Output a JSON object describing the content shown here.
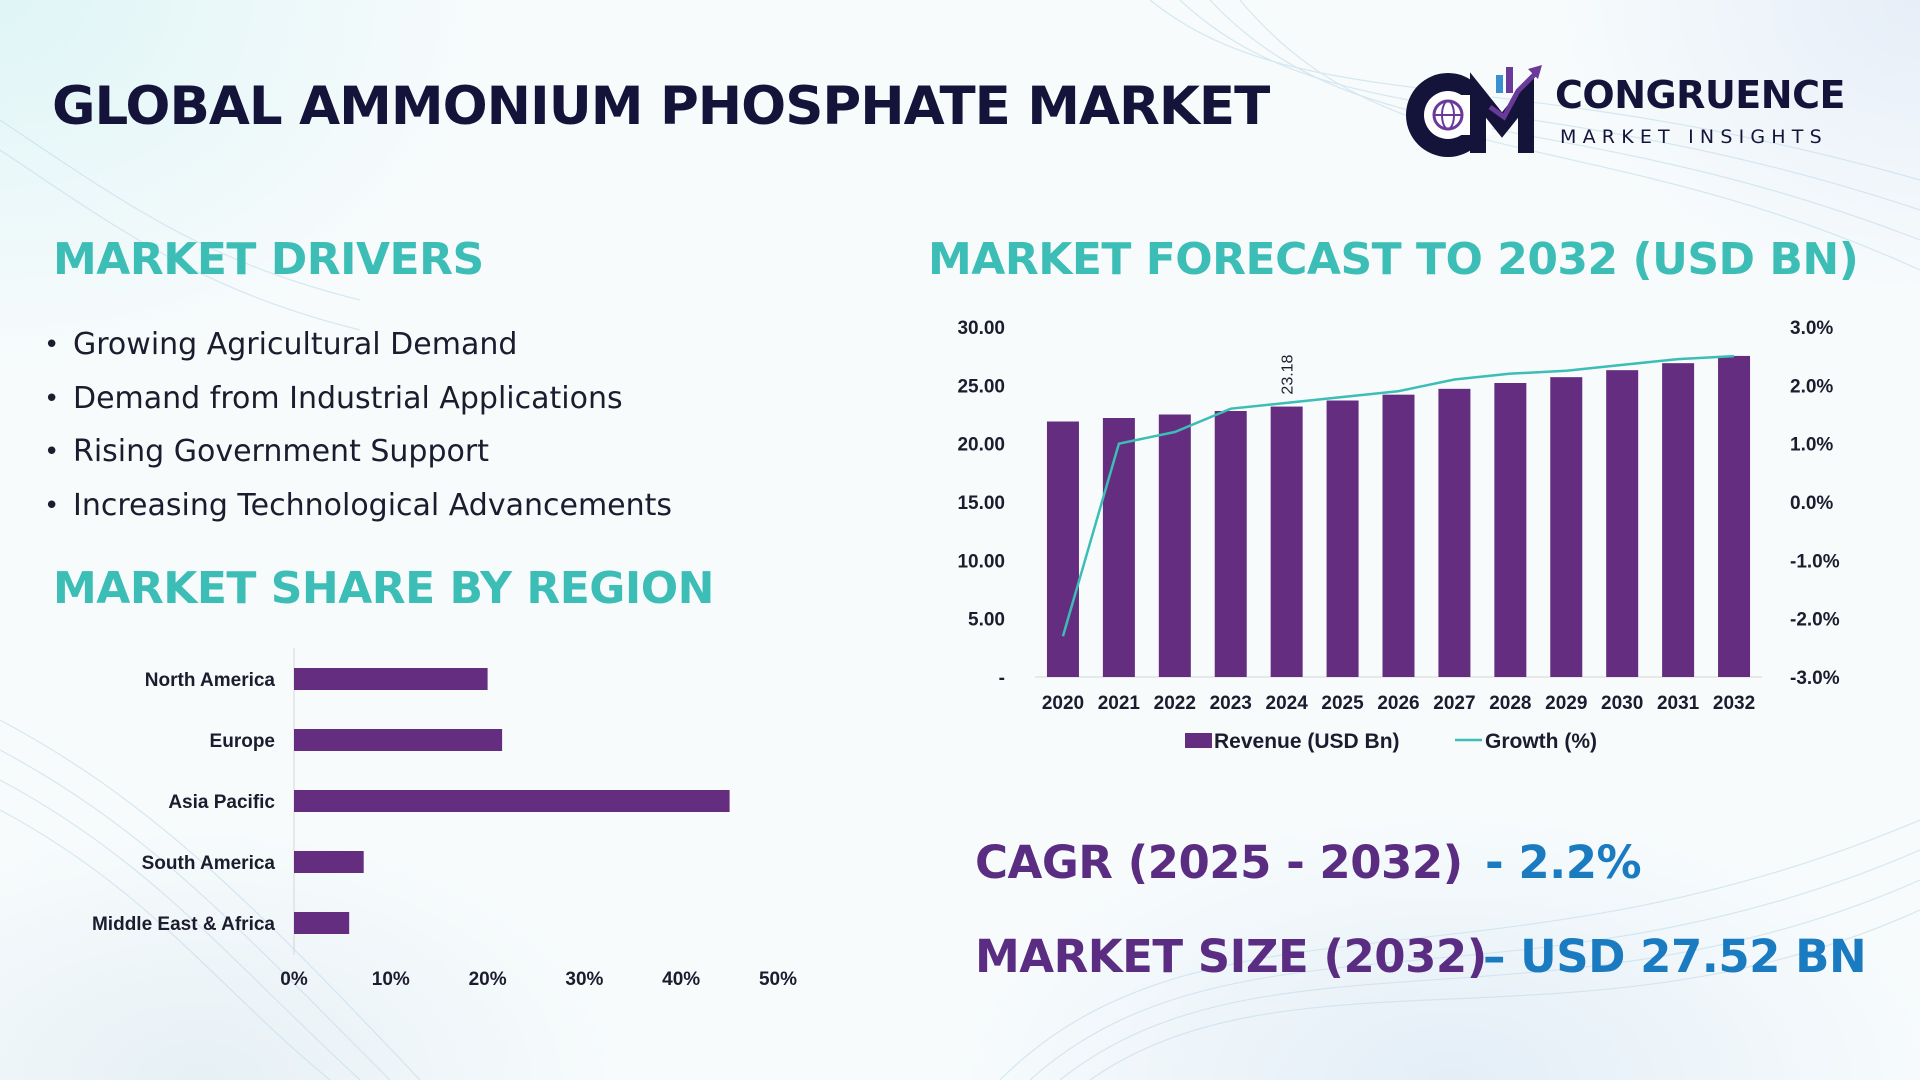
{
  "title": "GLOBAL AMMONIUM PHOSPHATE MARKET",
  "logo": {
    "name": "CONGRUENCE",
    "tagline": "MARKET INSIGHTS",
    "monogram": "CM"
  },
  "colors": {
    "accent_teal": "#3cbdb6",
    "bar_purple": "#652d80",
    "title_navy": "#14143a",
    "stat_purple": "#5b2d82",
    "stat_blue": "#1b7bc0"
  },
  "drivers": {
    "title": "MARKET DRIVERS",
    "items": [
      "Growing Agricultural Demand",
      "Demand from Industrial Applications",
      "Rising Government Support",
      "Increasing Technological Advancements"
    ]
  },
  "region": {
    "title": "MARKET SHARE BY REGION"
  },
  "forecast": {
    "title": "MARKET FORECAST TO 2032 (USD BN)"
  },
  "stats": {
    "cagr_label": "CAGR (2025 - 2032)",
    "cagr_value": "- 2.2%",
    "size_label": "MARKET SIZE (2032)",
    "size_value": "– USD 27.52 BN"
  },
  "chart_data": [
    {
      "type": "bar",
      "orientation": "horizontal",
      "categories": [
        "North America",
        "Europe",
        "Asia Pacific",
        "South America",
        "Middle East & Africa"
      ],
      "values": [
        20,
        21.5,
        45,
        7.2,
        5.7
      ],
      "xlim": [
        0,
        50
      ],
      "xticks": [
        "0%",
        "10%",
        "20%",
        "30%",
        "40%",
        "50%"
      ],
      "color": "#652d80"
    },
    {
      "type": "bar",
      "categories": [
        "2020",
        "2021",
        "2022",
        "2023",
        "2024",
        "2025",
        "2026",
        "2027",
        "2028",
        "2029",
        "2030",
        "2031",
        "2032"
      ],
      "series": [
        {
          "name": "Revenue (USD Bn)",
          "type": "bar",
          "axis": "left",
          "color": "#652d80",
          "values": [
            21.9,
            22.2,
            22.5,
            22.8,
            23.18,
            23.7,
            24.2,
            24.7,
            25.2,
            25.7,
            26.3,
            26.9,
            27.52
          ]
        },
        {
          "name": "Growth (%)",
          "type": "line",
          "axis": "right",
          "color": "#3cbdb6",
          "values": [
            -2.3,
            1.0,
            1.2,
            1.6,
            1.7,
            1.8,
            1.9,
            2.1,
            2.2,
            2.25,
            2.35,
            2.45,
            2.5
          ]
        }
      ],
      "data_labels": [
        {
          "index": 4,
          "text": "23.18"
        }
      ],
      "ylim": [
        0,
        30
      ],
      "yticks": [
        "-",
        "5.00",
        "10.00",
        "15.00",
        "20.00",
        "25.00",
        "30.00"
      ],
      "y2lim": [
        -3,
        3
      ],
      "y2ticks": [
        "-3.0%",
        "-2.0%",
        "-1.0%",
        "0.0%",
        "1.0%",
        "2.0%",
        "3.0%"
      ],
      "legend": "bottom"
    }
  ]
}
